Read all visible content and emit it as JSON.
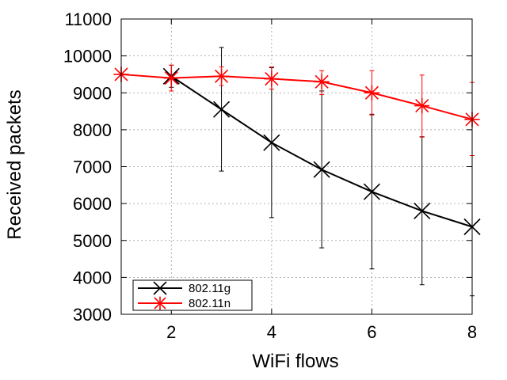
{
  "chart_data": {
    "type": "line",
    "title": "",
    "xlabel": "WiFi flows",
    "ylabel": "Received packets",
    "xlim": [
      1,
      8
    ],
    "ylim": [
      3000,
      11000
    ],
    "xticks": [
      2,
      4,
      6,
      8
    ],
    "yticks": [
      3000,
      4000,
      5000,
      6000,
      7000,
      8000,
      9000,
      10000,
      11000
    ],
    "grid": true,
    "legend_position": "bottom-left",
    "series": [
      {
        "name": "802.11g",
        "color": "#000000",
        "marker": "x",
        "x": [
          2,
          3,
          4,
          5,
          6,
          7,
          8
        ],
        "y": [
          9450,
          8550,
          7650,
          6920,
          6320,
          5800,
          5370
        ],
        "err_low": [
          9150,
          6880,
          5620,
          4800,
          4230,
          3800,
          3500
        ],
        "err_high": [
          9750,
          10230,
          9680,
          9050,
          8420,
          7810,
          7300
        ]
      },
      {
        "name": "802.11n",
        "color": "#ff0000",
        "marker": "asterisk",
        "x": [
          1,
          2,
          3,
          4,
          5,
          6,
          7,
          8
        ],
        "y": [
          9500,
          9400,
          9450,
          9380,
          9300,
          9000,
          8650,
          8280
        ],
        "err_low": [
          9500,
          9050,
          9200,
          9100,
          8950,
          8400,
          7800,
          7300
        ],
        "err_high": [
          9500,
          9750,
          9700,
          9700,
          9600,
          9600,
          9480,
          9280
        ]
      }
    ]
  }
}
